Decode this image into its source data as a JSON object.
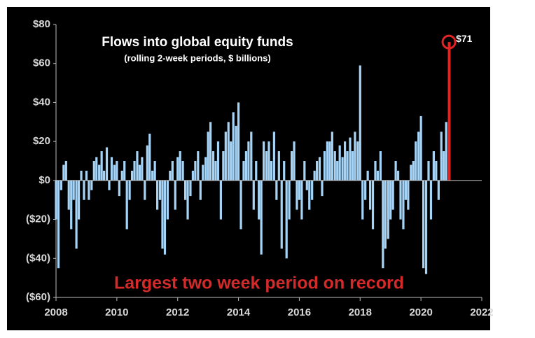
{
  "chart_data": {
    "type": "bar",
    "title": "Flows into global equity funds",
    "subtitle": "(rolling  2-week periods, $ billions)",
    "annotations": [
      "$71",
      "Largest two week period on record"
    ],
    "xlim": [
      2008,
      2022
    ],
    "xticks": [
      2008,
      2010,
      2012,
      2014,
      2016,
      2018,
      2020,
      2022
    ],
    "ylim": [
      -60,
      80
    ],
    "yticks": [
      {
        "value": -60,
        "label": "($60)"
      },
      {
        "value": -40,
        "label": "($40)"
      },
      {
        "value": -20,
        "label": "($20)"
      },
      {
        "value": 0,
        "label": "$0"
      },
      {
        "value": 20,
        "label": "$20"
      },
      {
        "value": 40,
        "label": "$40"
      },
      {
        "value": 60,
        "label": "$60"
      },
      {
        "value": 80,
        "label": "$80"
      }
    ],
    "series": [
      {
        "color": "#a6d4f7",
        "x": [
          2008.0,
          2008.08,
          2008.17,
          2008.25,
          2008.33,
          2008.42,
          2008.5,
          2008.58,
          2008.67,
          2008.75,
          2008.83,
          2008.92,
          2009.0,
          2009.08,
          2009.17,
          2009.25,
          2009.33,
          2009.42,
          2009.5,
          2009.58,
          2009.67,
          2009.75,
          2009.83,
          2009.92,
          2010.0,
          2010.08,
          2010.17,
          2010.25,
          2010.33,
          2010.42,
          2010.5,
          2010.58,
          2010.67,
          2010.75,
          2010.83,
          2010.92,
          2011.0,
          2011.08,
          2011.17,
          2011.25,
          2011.33,
          2011.42,
          2011.5,
          2011.58,
          2011.67,
          2011.75,
          2011.83,
          2011.92,
          2012.0,
          2012.08,
          2012.17,
          2012.25,
          2012.33,
          2012.42,
          2012.5,
          2012.58,
          2012.67,
          2012.75,
          2012.83,
          2012.92,
          2013.0,
          2013.08,
          2013.17,
          2013.25,
          2013.33,
          2013.42,
          2013.5,
          2013.58,
          2013.67,
          2013.75,
          2013.83,
          2013.92,
          2014.0,
          2014.08,
          2014.17,
          2014.25,
          2014.33,
          2014.42,
          2014.5,
          2014.58,
          2014.67,
          2014.75,
          2014.83,
          2014.92,
          2015.0,
          2015.08,
          2015.17,
          2015.25,
          2015.33,
          2015.42,
          2015.5,
          2015.58,
          2015.67,
          2015.75,
          2015.83,
          2015.92,
          2016.0,
          2016.08,
          2016.17,
          2016.25,
          2016.33,
          2016.42,
          2016.5,
          2016.58,
          2016.67,
          2016.75,
          2016.83,
          2016.92,
          2017.0,
          2017.08,
          2017.17,
          2017.25,
          2017.33,
          2017.42,
          2017.5,
          2017.58,
          2017.67,
          2017.75,
          2017.83,
          2017.92,
          2018.0,
          2018.08,
          2018.17,
          2018.25,
          2018.33,
          2018.42,
          2018.5,
          2018.58,
          2018.67,
          2018.75,
          2018.83,
          2018.92,
          2019.0,
          2019.08,
          2019.17,
          2019.25,
          2019.33,
          2019.42,
          2019.5,
          2019.58,
          2019.67,
          2019.75,
          2019.83,
          2019.92,
          2020.0,
          2020.08,
          2020.17,
          2020.25,
          2020.33,
          2020.42,
          2020.5,
          2020.58,
          2020.67,
          2020.75,
          2020.83
        ],
        "values": [
          -20,
          -45,
          -5,
          8,
          10,
          -15,
          -25,
          -10,
          -35,
          -20,
          5,
          -10,
          5,
          -10,
          -5,
          10,
          12,
          8,
          15,
          5,
          17,
          -5,
          12,
          8,
          10,
          -8,
          5,
          10,
          -25,
          -10,
          5,
          10,
          15,
          8,
          12,
          -10,
          18,
          24,
          5,
          10,
          -15,
          -10,
          -35,
          -38,
          -20,
          5,
          10,
          -15,
          12,
          15,
          10,
          -10,
          -20,
          -8,
          5,
          10,
          15,
          -10,
          8,
          12,
          25,
          30,
          15,
          10,
          20,
          -20,
          15,
          25,
          30,
          20,
          35,
          28,
          40,
          -25,
          10,
          15,
          20,
          25,
          -15,
          10,
          -20,
          -38,
          20,
          15,
          20,
          10,
          25,
          -10,
          15,
          -35,
          10,
          -40,
          -20,
          15,
          20,
          -15,
          -10,
          -20,
          10,
          -5,
          -15,
          -10,
          5,
          10,
          12,
          -8,
          15,
          20,
          20,
          25,
          15,
          10,
          18,
          12,
          20,
          15,
          22,
          15,
          25,
          20,
          59,
          -20,
          -10,
          5,
          -15,
          -25,
          10,
          5,
          15,
          -45,
          -35,
          -30,
          -20,
          -15,
          10,
          5,
          -20,
          -25,
          -10,
          -15,
          8,
          10,
          20,
          25,
          33,
          -45,
          -48,
          10,
          -20,
          15,
          10,
          -10,
          25,
          15,
          30
        ]
      },
      {
        "color": "#e02424",
        "x": [
          2020.92
        ],
        "values": [
          71
        ]
      }
    ]
  }
}
